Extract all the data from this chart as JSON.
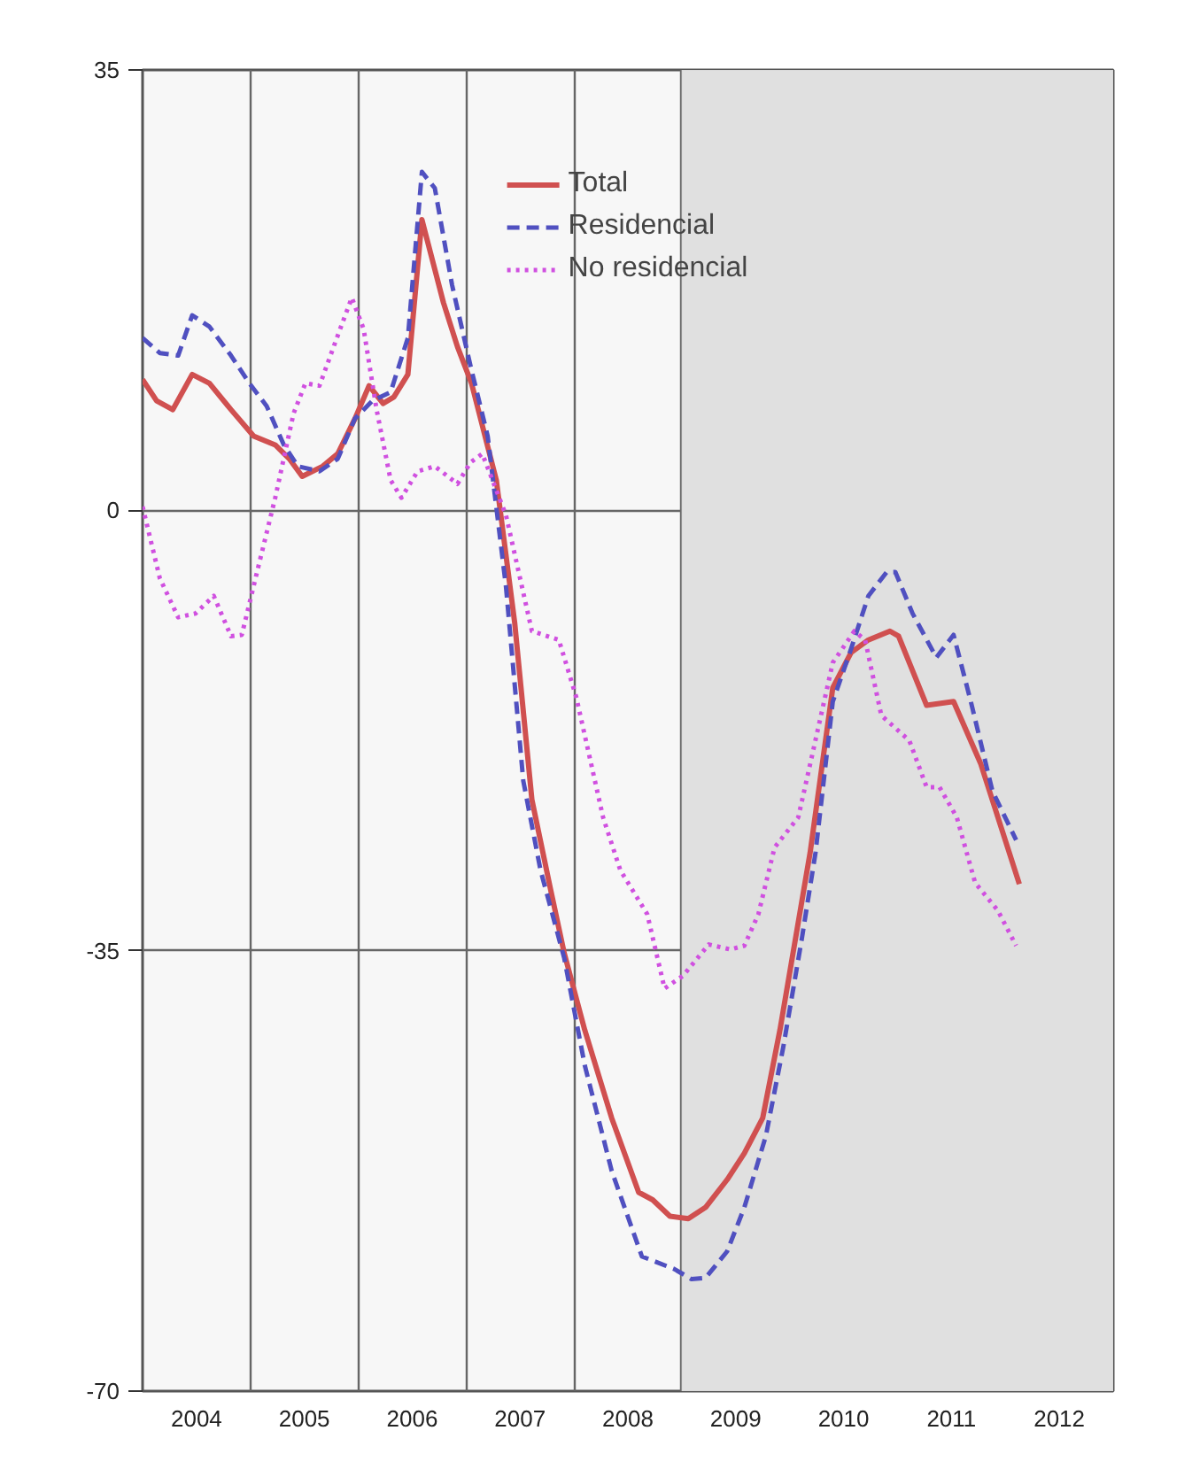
{
  "chart_data": {
    "type": "line",
    "xlim": [
      2004,
      2013
    ],
    "ylim": [
      -70,
      35
    ],
    "yticks": [
      -70,
      -35,
      0,
      35
    ],
    "xticks": [
      {
        "value": 2004,
        "label": null
      },
      {
        "value": 2004.5,
        "label": "2004"
      },
      {
        "value": 2005,
        "label": null
      },
      {
        "value": 2005.5,
        "label": "2005"
      },
      {
        "value": 2006,
        "label": null
      },
      {
        "value": 2006.5,
        "label": "2006"
      },
      {
        "value": 2007,
        "label": null
      },
      {
        "value": 2007.5,
        "label": "2007"
      },
      {
        "value": 2008,
        "label": null
      },
      {
        "value": 2008.5,
        "label": "2008"
      },
      {
        "value": 2009,
        "label": null
      },
      {
        "value": 2009.5,
        "label": "2009"
      },
      {
        "value": 2010,
        "label": null
      },
      {
        "value": 2010.5,
        "label": "2010"
      },
      {
        "value": 2011,
        "label": null
      },
      {
        "value": 2011.5,
        "label": "2011"
      },
      {
        "value": 2012,
        "label": null
      },
      {
        "value": 2012.5,
        "label": "2012"
      },
      {
        "value": 2013,
        "label": null
      }
    ],
    "grid": true,
    "legend": "top",
    "marker": "none",
    "bands": [
      {
        "axis": "x",
        "from": 2009,
        "to": 2013,
        "color": "#e0e0e0"
      }
    ],
    "series": [
      {
        "name": "Total",
        "color": "#d05050",
        "line_style": "solid",
        "x": [
          2004.0,
          2004.13,
          2004.28,
          2004.46,
          2004.62,
          2004.82,
          2005.03,
          2005.23,
          2005.36,
          2005.48,
          2005.67,
          2005.81,
          2005.97,
          2006.1,
          2006.23,
          2006.33,
          2006.46,
          2006.59,
          2006.79,
          2006.92,
          2007.05,
          2007.28,
          2007.45,
          2007.61,
          2007.78,
          2007.91,
          2008.1,
          2008.35,
          2008.6,
          2008.73,
          2008.89,
          2009.06,
          2009.22,
          2009.42,
          2009.58,
          2009.75,
          2009.91,
          2010.19,
          2010.4,
          2010.57,
          2010.73,
          2010.93,
          2011.01,
          2011.27,
          2011.52,
          2011.77,
          2012.13
        ],
        "values": [
          10.4,
          8.7,
          8.0,
          10.8,
          10.1,
          8.0,
          5.9,
          5.2,
          4.1,
          2.7,
          3.5,
          4.5,
          7.3,
          9.9,
          8.5,
          9.0,
          10.8,
          23.1,
          16.5,
          13.0,
          10.1,
          2.4,
          -8.9,
          -23.0,
          -30.0,
          -35.2,
          -41.3,
          -48.3,
          -54.2,
          -54.8,
          -56.1,
          -56.3,
          -55.4,
          -53.2,
          -51.1,
          -48.3,
          -41.3,
          -27.2,
          -14.1,
          -11.3,
          -10.3,
          -9.6,
          -10.0,
          -15.5,
          -15.2,
          -20.1,
          -29.7
        ]
      },
      {
        "name": "Residencial",
        "color": "#5050c0",
        "line_style": "dashed",
        "x": [
          2004.0,
          2004.16,
          2004.33,
          2004.46,
          2004.62,
          2004.82,
          2004.99,
          2005.15,
          2005.31,
          2005.44,
          2005.64,
          2005.81,
          2005.97,
          2006.13,
          2006.3,
          2006.46,
          2006.59,
          2006.71,
          2006.87,
          2007.04,
          2007.2,
          2007.37,
          2007.53,
          2007.69,
          2007.91,
          2008.1,
          2008.35,
          2008.63,
          2008.93,
          2009.09,
          2009.22,
          2009.42,
          2009.58,
          2009.78,
          2009.94,
          2010.11,
          2010.24,
          2010.4,
          2010.57,
          2010.73,
          2010.9,
          2010.98,
          2011.14,
          2011.36,
          2011.52,
          2011.68,
          2011.88,
          2012.1
        ],
        "values": [
          13.7,
          12.5,
          12.3,
          15.5,
          14.6,
          12.3,
          10.1,
          8.3,
          5.2,
          3.5,
          3.1,
          4.1,
          7.3,
          8.7,
          9.4,
          13.7,
          26.9,
          25.6,
          17.9,
          11.5,
          5.9,
          -6.1,
          -21.5,
          -28.6,
          -35.6,
          -44.1,
          -52.5,
          -59.3,
          -60.3,
          -61.1,
          -61.0,
          -58.9,
          -55.4,
          -49.7,
          -42.7,
          -34.2,
          -27.2,
          -15.2,
          -11.0,
          -6.8,
          -4.9,
          -4.9,
          -8.2,
          -11.7,
          -9.9,
          -15.2,
          -22.3,
          -26.2
        ]
      },
      {
        "name": "No residencial",
        "color": "#d050e0",
        "line_style": "dotted",
        "x": [
          2004.0,
          2004.16,
          2004.33,
          2004.49,
          2004.66,
          2004.82,
          2004.92,
          2005.07,
          2005.23,
          2005.4,
          2005.51,
          2005.64,
          2005.81,
          2005.94,
          2006.05,
          2006.17,
          2006.3,
          2006.4,
          2006.55,
          2006.71,
          2006.92,
          2007.04,
          2007.15,
          2007.37,
          2007.61,
          2007.86,
          2008.02,
          2008.27,
          2008.43,
          2008.68,
          2008.84,
          2009.01,
          2009.25,
          2009.45,
          2009.58,
          2009.71,
          2009.86,
          2010.08,
          2010.4,
          2010.6,
          2010.7,
          2010.85,
          2011.11,
          2011.27,
          2011.39,
          2011.55,
          2011.72,
          2011.93,
          2012.1
        ],
        "values": [
          0.3,
          -5.4,
          -8.5,
          -8.2,
          -6.8,
          -10.0,
          -9.9,
          -4.6,
          1.0,
          7.7,
          10.1,
          9.9,
          13.9,
          16.9,
          14.4,
          8.0,
          2.4,
          1.0,
          3.1,
          3.5,
          2.1,
          3.8,
          4.5,
          -0.4,
          -9.6,
          -10.3,
          -14.8,
          -24.4,
          -28.6,
          -32.1,
          -38.0,
          -37.0,
          -34.5,
          -34.9,
          -34.6,
          -32.1,
          -26.8,
          -24.4,
          -12.1,
          -9.6,
          -10.3,
          -16.3,
          -18.3,
          -22.0,
          -22.0,
          -24.4,
          -29.6,
          -31.8,
          -34.6
        ]
      }
    ]
  }
}
